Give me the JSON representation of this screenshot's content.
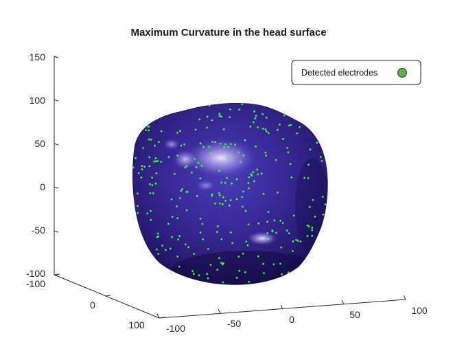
{
  "chart_data": {
    "type": "scatter",
    "title": "Maximum Curvature in the head surface",
    "xlabel": "",
    "ylabel": "",
    "zlabel": "",
    "x_ticks": [
      "-100",
      "-50",
      "0",
      "50",
      "100"
    ],
    "y_ticks": [
      "-100",
      "0",
      "100"
    ],
    "z_ticks": [
      "150",
      "100",
      "50",
      "0",
      "-50",
      "-100"
    ],
    "xlim": [
      -100,
      100
    ],
    "ylim": [
      -100,
      100
    ],
    "zlim": [
      -100,
      150
    ],
    "grid": false,
    "legend_position": "top-right",
    "series": [
      {
        "name": "Detected electrodes",
        "marker": "filled circle",
        "color": "#6aa84f",
        "count_approx": 250
      }
    ],
    "surface": {
      "description_color": "#2e1f7a",
      "highlight_color": "#e6e0ff"
    }
  },
  "colors": {
    "surface_dark": "#1f1460",
    "surface_mid": "#3a2a9a",
    "surface_light": "#dcd6ff",
    "electrode": "#33ff33",
    "legend_marker_fill": "#6aa84f",
    "legend_marker_stroke": "#2e5e1e"
  }
}
